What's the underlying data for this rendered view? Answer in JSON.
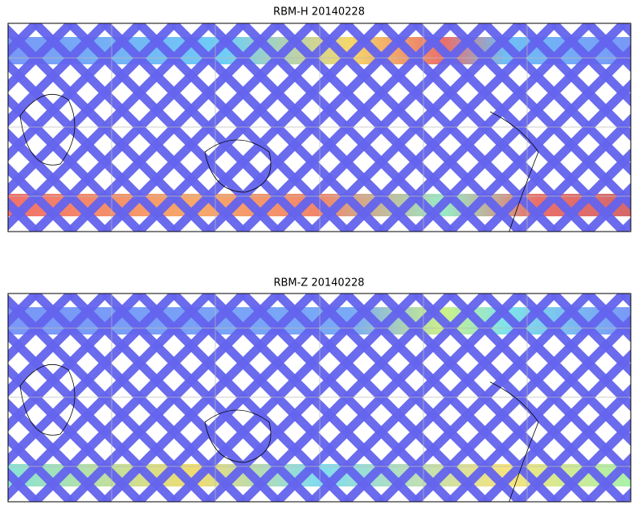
{
  "panels": [
    {
      "title": "RBM-H 20140228"
    },
    {
      "title": "RBM-Z 20140228"
    }
  ]
}
